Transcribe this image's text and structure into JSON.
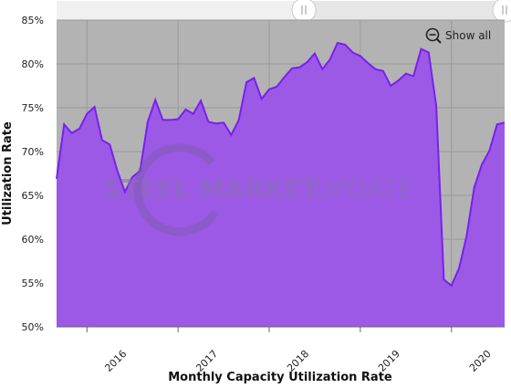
{
  "controls": {
    "show_all_label": "Show all"
  },
  "watermark": {
    "brand_bold": "STEEL MARKET",
    "brand_light": "UPDATE"
  },
  "colors": {
    "fill": "#9b59e6",
    "line": "#7a1ff0",
    "plot_background": "#b3b3b3",
    "navigator_background": "#e6e6e6"
  },
  "chart_data": {
    "type": "area",
    "title": "",
    "xlabel": "Monthly Capacity Utilization Rate",
    "ylabel": "Utilization Rate",
    "ylim": [
      50,
      85
    ],
    "y_ticks": [
      "50%",
      "55%",
      "60%",
      "65%",
      "70%",
      "75%",
      "80%",
      "85%"
    ],
    "y_tick_values": [
      50,
      55,
      60,
      65,
      70,
      75,
      80,
      85
    ],
    "x_tick_labels": [
      "2016",
      "2017",
      "2018",
      "2019",
      "2020"
    ],
    "x_tick_years": [
      2016,
      2017,
      2018,
      2019,
      2020
    ],
    "x_range": [
      "2015-09",
      "2020-08"
    ],
    "grid": true,
    "legend": "none",
    "series": [
      {
        "x": [
          "2015-09",
          "2015-10",
          "2015-11",
          "2015-12",
          "2016-01",
          "2016-02",
          "2016-03",
          "2016-04",
          "2016-05",
          "2016-06",
          "2016-07",
          "2016-08",
          "2016-09",
          "2016-10",
          "2016-11",
          "2016-12",
          "2017-01",
          "2017-02",
          "2017-03",
          "2017-04",
          "2017-05",
          "2017-06",
          "2017-07",
          "2017-08",
          "2017-09",
          "2017-10",
          "2017-11",
          "2017-12",
          "2018-01",
          "2018-02",
          "2018-03",
          "2018-04",
          "2018-05",
          "2018-06",
          "2018-07",
          "2018-08",
          "2018-09",
          "2018-10",
          "2018-11",
          "2018-12",
          "2019-01",
          "2019-02",
          "2019-03",
          "2019-04",
          "2019-05",
          "2019-06",
          "2019-07",
          "2019-08",
          "2019-09",
          "2019-10",
          "2019-11",
          "2019-12",
          "2020-01",
          "2020-02",
          "2020-03",
          "2020-04",
          "2020-05",
          "2020-06",
          "2020-07",
          "2020-08"
        ],
        "values": [
          66.9,
          73.1,
          72.1,
          72.6,
          74.3,
          75.1,
          71.3,
          70.8,
          67.8,
          65.4,
          67.1,
          67.8,
          73.4,
          75.9,
          73.6,
          73.6,
          73.7,
          74.8,
          74.3,
          75.8,
          73.4,
          73.2,
          73.3,
          71.9,
          73.6,
          77.9,
          78.4,
          76.0,
          77.1,
          77.4,
          78.5,
          79.5,
          79.6,
          80.2,
          81.2,
          79.4,
          80.5,
          82.4,
          82.2,
          81.3,
          80.9,
          80.1,
          79.4,
          79.2,
          77.5,
          78.1,
          78.9,
          78.6,
          81.7,
          81.3,
          75.2,
          55.4,
          54.7,
          56.7,
          60.4,
          65.9,
          68.5,
          70.1,
          73.1,
          73.3
        ]
      }
    ]
  }
}
